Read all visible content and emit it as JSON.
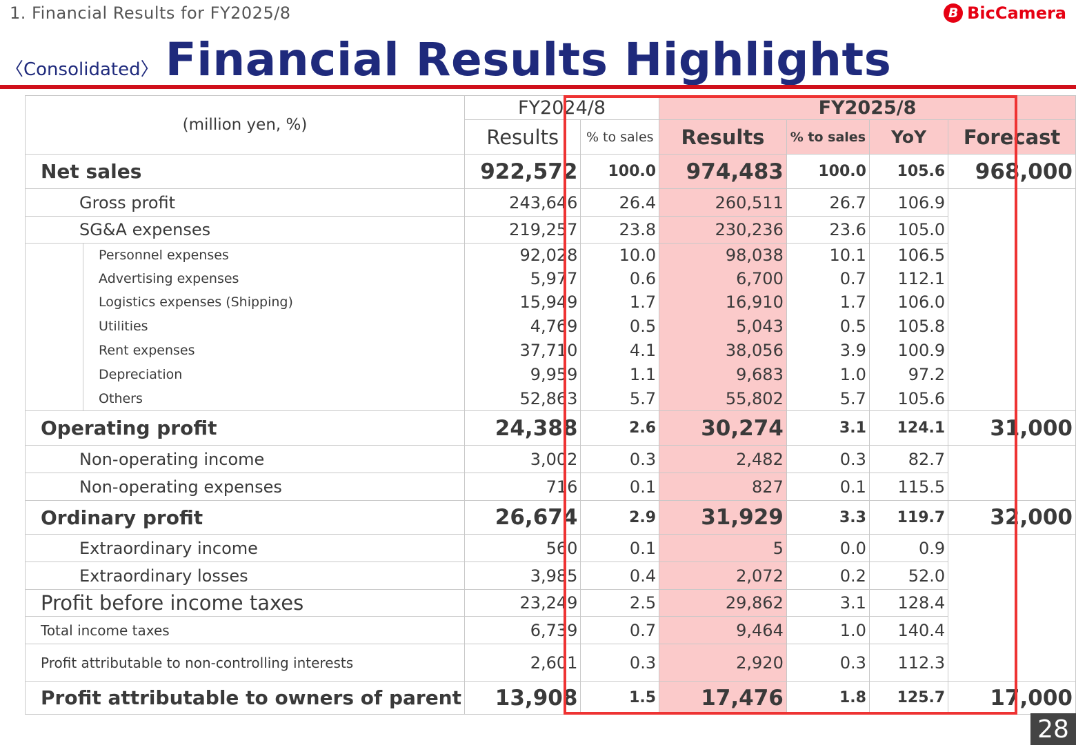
{
  "header": {
    "section_label": "1. Financial Results for FY2025/8",
    "logo_text": "BicCamera",
    "title_tag": "〈Consolidated〉",
    "title_main": "Financial Results Highlights"
  },
  "colors": {
    "title": "#1f2a7c",
    "accent_red": "#d0101b",
    "highlight": "#fbcaca",
    "box": "#ee3333"
  },
  "table": {
    "unit_label": "(million yen, %)",
    "fy_prev": "FY2024/8",
    "fy_curr": "FY2025/8",
    "col_results": "Results",
    "col_pct": "% to sales",
    "col_yoy": "YoY",
    "col_forecast": "Forecast",
    "rows": [
      {
        "label": "Net sales",
        "prev": "922,572",
        "prev_pct": "100.0",
        "curr": "974,483",
        "curr_pct": "100.0",
        "yoy": "105.6",
        "forecast": "968,000"
      },
      {
        "label": "Gross profit",
        "prev": "243,646",
        "prev_pct": "26.4",
        "curr": "260,511",
        "curr_pct": "26.7",
        "yoy": "106.9"
      },
      {
        "label": "SG&A expenses",
        "prev": "219,257",
        "prev_pct": "23.8",
        "curr": "230,236",
        "curr_pct": "23.6",
        "yoy": "105.0"
      },
      {
        "label": "Personnel expenses",
        "prev": "92,028",
        "prev_pct": "10.0",
        "curr": "98,038",
        "curr_pct": "10.1",
        "yoy": "106.5"
      },
      {
        "label": "Advertising expenses",
        "prev": "5,977",
        "prev_pct": "0.6",
        "curr": "6,700",
        "curr_pct": "0.7",
        "yoy": "112.1"
      },
      {
        "label": "Logistics expenses (Shipping)",
        "prev": "15,949",
        "prev_pct": "1.7",
        "curr": "16,910",
        "curr_pct": "1.7",
        "yoy": "106.0"
      },
      {
        "label": "Utilities",
        "prev": "4,769",
        "prev_pct": "0.5",
        "curr": "5,043",
        "curr_pct": "0.5",
        "yoy": "105.8"
      },
      {
        "label": "Rent expenses",
        "prev": "37,710",
        "prev_pct": "4.1",
        "curr": "38,056",
        "curr_pct": "3.9",
        "yoy": "100.9"
      },
      {
        "label": "Depreciation",
        "prev": "9,959",
        "prev_pct": "1.1",
        "curr": "9,683",
        "curr_pct": "1.0",
        "yoy": "97.2"
      },
      {
        "label": "Others",
        "prev": "52,863",
        "prev_pct": "5.7",
        "curr": "55,802",
        "curr_pct": "5.7",
        "yoy": "105.6"
      },
      {
        "label": "Operating profit",
        "prev": "24,388",
        "prev_pct": "2.6",
        "curr": "30,274",
        "curr_pct": "3.1",
        "yoy": "124.1",
        "forecast": "31,000"
      },
      {
        "label": "Non-operating income",
        "prev": "3,002",
        "prev_pct": "0.3",
        "curr": "2,482",
        "curr_pct": "0.3",
        "yoy": "82.7"
      },
      {
        "label": "Non-operating expenses",
        "prev": "716",
        "prev_pct": "0.1",
        "curr": "827",
        "curr_pct": "0.1",
        "yoy": "115.5"
      },
      {
        "label": "Ordinary profit",
        "prev": "26,674",
        "prev_pct": "2.9",
        "curr": "31,929",
        "curr_pct": "3.3",
        "yoy": "119.7",
        "forecast": "32,000"
      },
      {
        "label": "Extraordinary income",
        "prev": "560",
        "prev_pct": "0.1",
        "curr": "5",
        "curr_pct": "0.0",
        "yoy": "0.9"
      },
      {
        "label": "Extraordinary losses",
        "prev": "3,985",
        "prev_pct": "0.4",
        "curr": "2,072",
        "curr_pct": "0.2",
        "yoy": "52.0"
      },
      {
        "label": "Profit before income taxes",
        "prev": "23,249",
        "prev_pct": "2.5",
        "curr": "29,862",
        "curr_pct": "3.1",
        "yoy": "128.4"
      },
      {
        "label": "Total income taxes",
        "prev": "6,739",
        "prev_pct": "0.7",
        "curr": "9,464",
        "curr_pct": "1.0",
        "yoy": "140.4"
      },
      {
        "label": "Profit attributable to non-controlling interests",
        "prev": "2,601",
        "prev_pct": "0.3",
        "curr": "2,920",
        "curr_pct": "0.3",
        "yoy": "112.3"
      },
      {
        "label": "Profit attributable to owners of parent",
        "prev": "13,908",
        "prev_pct": "1.5",
        "curr": "17,476",
        "curr_pct": "1.8",
        "yoy": "125.7",
        "forecast": "17,000"
      }
    ]
  },
  "page_number": "28"
}
